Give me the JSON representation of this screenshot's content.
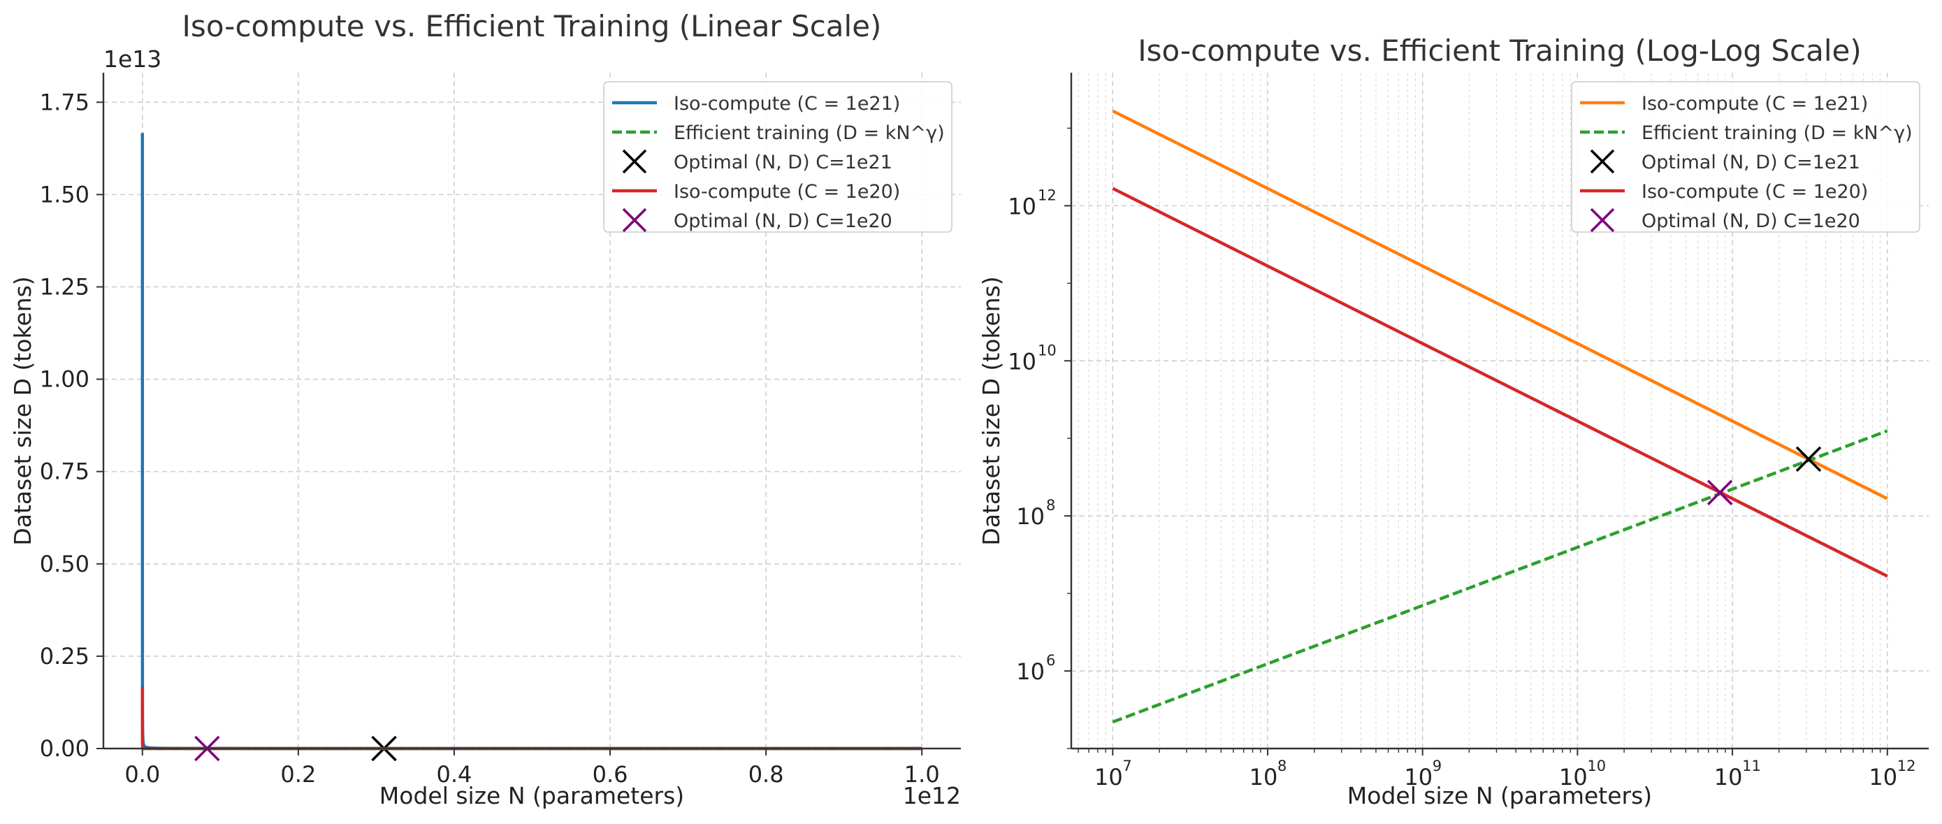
{
  "chart_data": [
    {
      "type": "line",
      "title": "Iso-compute vs. Efficient Training (Linear Scale)",
      "xlabel": "Model size N (parameters)",
      "ylabel": "Dataset size D (tokens)",
      "x_offset_label": "1e12",
      "y_offset_label": "1e13",
      "xlim": [
        -0.05,
        1.05
      ],
      "ylim": [
        0,
        1.83
      ],
      "x_unit": 1000000000000.0,
      "y_unit": 10000000000000.0,
      "xticks": [
        0.0,
        0.2,
        0.4,
        0.6,
        0.8,
        1.0
      ],
      "xtick_labels": [
        "0.0",
        "0.2",
        "0.4",
        "0.6",
        "0.8",
        "1.0"
      ],
      "yticks": [
        0.0,
        0.25,
        0.5,
        0.75,
        1.0,
        1.25,
        1.5,
        1.75
      ],
      "ytick_labels": [
        "0.00",
        "0.25",
        "0.50",
        "0.75",
        "1.00",
        "1.25",
        "1.50",
        "1.75"
      ],
      "grid": true,
      "legend": "top-right",
      "series": [
        {
          "name": "Iso-compute (C = 1e21)",
          "style": "line",
          "color": "#1f77b4",
          "compute": 1e+21
        },
        {
          "name": "Efficient training (D = kN^γ)",
          "style": "dashed",
          "color": "#2ca02c"
        },
        {
          "name": "Optimal (N, D) C=1e21",
          "style": "marker",
          "color": "#000000",
          "x": 310000000000.0,
          "y": 540000000.0
        },
        {
          "name": "Iso-compute (C = 1e20)",
          "style": "line",
          "color": "#d62728",
          "compute": 1e+20
        },
        {
          "name": "Optimal (N, D) C=1e20",
          "style": "marker",
          "color": "#800080",
          "x": 83000000000.0,
          "y": 200000000.0
        }
      ]
    },
    {
      "type": "line",
      "title": "Iso-compute vs. Efficient Training (Log-Log Scale)",
      "xlabel": "Model size N (parameters)",
      "ylabel": "Dataset size D (tokens)",
      "xscale": "log",
      "yscale": "log",
      "xlim": [
        5400000.0,
        1850000000000.0
      ],
      "ylim": [
        100000.0,
        52000000000000.0
      ],
      "xtick_exponents": [
        "7",
        "8",
        "9",
        "10",
        "11",
        "12"
      ],
      "ytick_exponents": [
        "6",
        "8",
        "10",
        "12"
      ],
      "grid": true,
      "legend": "top-right",
      "series": [
        {
          "name": "Iso-compute (C = 1e21)",
          "style": "line",
          "color": "#ff7f0e",
          "x": [
            10000000.0,
            1000000000000.0
          ],
          "y": [
            16700000000000.0,
            167000000.0
          ]
        },
        {
          "name": "Efficient training (D = kN^γ)",
          "style": "dashed",
          "color": "#2ca02c",
          "x": [
            10000000.0,
            1000000000000.0
          ],
          "y": [
            220000.0,
            1250000000.0
          ]
        },
        {
          "name": "Optimal (N, D) C=1e21",
          "style": "marker",
          "color": "#000000",
          "x": 310000000000.0,
          "y": 540000000.0
        },
        {
          "name": "Iso-compute (C = 1e20)",
          "style": "line",
          "color": "#d62728",
          "x": [
            10000000.0,
            1000000000000.0
          ],
          "y": [
            1670000000000.0,
            16700000.0
          ]
        },
        {
          "name": "Optimal (N, D) C=1e20",
          "style": "marker",
          "color": "#800080",
          "x": 83000000000.0,
          "y": 200000000.0
        }
      ]
    }
  ]
}
